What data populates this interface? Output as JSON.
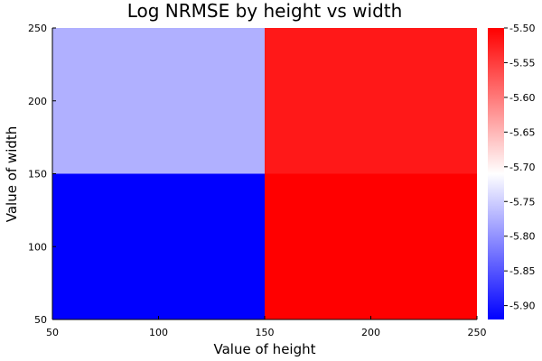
{
  "chart_data": {
    "type": "heatmap",
    "title": "Log NRMSE by height vs width",
    "xlabel": "Value of height",
    "ylabel": "Value of width",
    "xlim": [
      50,
      250
    ],
    "ylim": [
      50,
      250
    ],
    "x_edges": [
      50,
      150,
      250
    ],
    "y_edges": [
      50,
      150,
      250
    ],
    "x_ticks": [
      50,
      100,
      150,
      200,
      250
    ],
    "y_ticks": [
      50,
      100,
      150,
      200,
      250
    ],
    "cells": [
      {
        "x": [
          50,
          150
        ],
        "y": [
          50,
          150
        ],
        "value": -5.92
      },
      {
        "x": [
          150,
          250
        ],
        "y": [
          50,
          150
        ],
        "value": -5.5
      },
      {
        "x": [
          50,
          150
        ],
        "y": [
          150,
          250
        ],
        "value": -5.775
      },
      {
        "x": [
          150,
          250
        ],
        "y": [
          150,
          250
        ],
        "value": -5.52
      }
    ],
    "colorbar": {
      "range": [
        -5.92,
        -5.5
      ],
      "ticks": [
        "-5.50",
        "-5.55",
        "-5.60",
        "-5.65",
        "-5.70",
        "-5.75",
        "-5.80",
        "-5.85",
        "-5.90"
      ],
      "colormap": [
        "#0000ff",
        "#ffffff",
        "#ff0000"
      ]
    },
    "grid": false,
    "legend": "colorbar-right"
  }
}
